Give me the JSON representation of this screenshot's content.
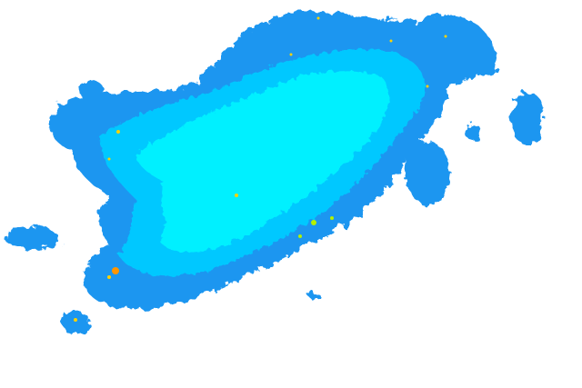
{
  "radar": {
    "legend_colors": {
      "weak": "#1e96f0",
      "moderate": "#00c8ff",
      "core": "#00f0ff",
      "light_green": "#b4f000",
      "yellow": "#ffd200",
      "orange": "#ff9600"
    }
  }
}
